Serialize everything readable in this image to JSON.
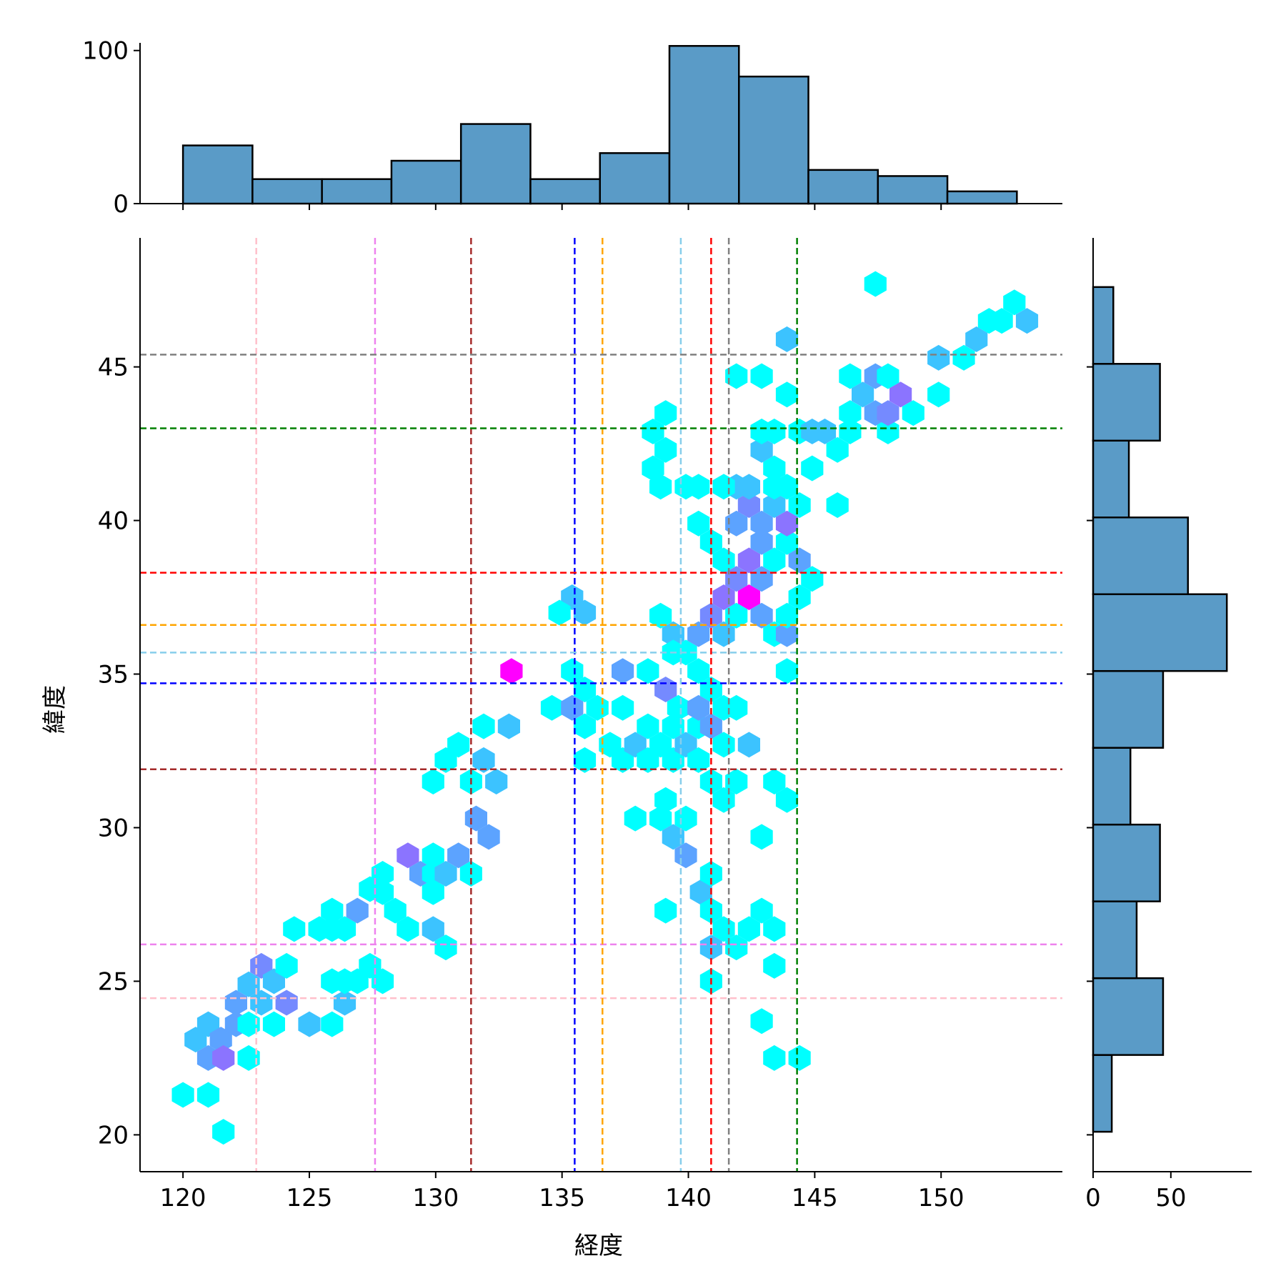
{
  "chart_data": {
    "type": "hexbin-joint",
    "title": "",
    "xlabel": "経度",
    "ylabel": "緯度",
    "xlim": [
      118.3,
      154.8
    ],
    "ylim": [
      18.8,
      49.2
    ],
    "xticks": [
      120,
      125,
      130,
      135,
      140,
      145,
      150
    ],
    "yticks": [
      20,
      25,
      30,
      35,
      40,
      45
    ],
    "grid": false,
    "colors": {
      "hist_fill": "#5a9bc7",
      "hist_edge": "#000000",
      "hex_low": "#00ffff",
      "hex_high": "#ff00ff"
    },
    "reference_lines": [
      {
        "color": "#ffc0cb",
        "lon": 122.9,
        "lat": 24.45
      },
      {
        "color": "#ee82ee",
        "lon": 127.6,
        "lat": 26.2
      },
      {
        "color": "#a52a2a",
        "lon": 131.4,
        "lat": 31.9
      },
      {
        "color": "#0000ff",
        "lon": 135.5,
        "lat": 34.7
      },
      {
        "color": "#ffa500",
        "lon": 136.6,
        "lat": 36.6
      },
      {
        "color": "#87ceeb",
        "lon": 139.7,
        "lat": 35.7
      },
      {
        "color": "#ff0000",
        "lon": 140.9,
        "lat": 38.3
      },
      {
        "color": "#808080",
        "lon": 141.6,
        "lat": 45.4
      },
      {
        "color": "#008000",
        "lon": 144.3,
        "lat": 43.0
      }
    ],
    "marginal_x": {
      "yticks": [
        0,
        100
      ],
      "bins": [
        {
          "x0": 120.0,
          "x1": 122.75,
          "count": 38
        },
        {
          "x0": 122.75,
          "x1": 125.5,
          "count": 16
        },
        {
          "x0": 125.5,
          "x1": 128.25,
          "count": 16
        },
        {
          "x0": 128.25,
          "x1": 131.0,
          "count": 28
        },
        {
          "x0": 131.0,
          "x1": 133.75,
          "count": 52
        },
        {
          "x0": 133.75,
          "x1": 136.5,
          "count": 16
        },
        {
          "x0": 136.5,
          "x1": 139.25,
          "count": 33
        },
        {
          "x0": 139.25,
          "x1": 142.0,
          "count": 103
        },
        {
          "x0": 142.0,
          "x1": 144.75,
          "count": 83
        },
        {
          "x0": 144.75,
          "x1": 147.5,
          "count": 22
        },
        {
          "x0": 147.5,
          "x1": 150.25,
          "count": 18
        },
        {
          "x0": 150.25,
          "x1": 153.0,
          "count": 8
        }
      ]
    },
    "marginal_y": {
      "xticks": [
        0,
        50
      ],
      "xlim": [
        0,
        102
      ],
      "bins": [
        {
          "y0": 20.1,
          "y1": 22.6,
          "count": 12
        },
        {
          "y0": 22.6,
          "y1": 25.1,
          "count": 45
        },
        {
          "y0": 25.1,
          "y1": 27.6,
          "count": 28
        },
        {
          "y0": 27.6,
          "y1": 30.1,
          "count": 43
        },
        {
          "y0": 30.1,
          "y1": 32.6,
          "count": 24
        },
        {
          "y0": 32.6,
          "y1": 35.1,
          "count": 45
        },
        {
          "y0": 35.1,
          "y1": 37.6,
          "count": 86
        },
        {
          "y0": 37.6,
          "y1": 40.1,
          "count": 61
        },
        {
          "y0": 40.1,
          "y1": 42.6,
          "count": 23
        },
        {
          "y0": 42.6,
          "y1": 45.1,
          "count": 43
        },
        {
          "y0": 45.1,
          "y1": 47.6,
          "count": 13
        }
      ]
    },
    "hexbins": [
      [
        120.0,
        21.3,
        1
      ],
      [
        121.0,
        21.3,
        1
      ],
      [
        121.6,
        20.1,
        1
      ],
      [
        120.5,
        23.1,
        2
      ],
      [
        121.0,
        23.6,
        2
      ],
      [
        121.0,
        22.5,
        3
      ],
      [
        121.5,
        23.1,
        3
      ],
      [
        121.6,
        22.5,
        5
      ],
      [
        122.1,
        23.6,
        3
      ],
      [
        122.6,
        22.5,
        1
      ],
      [
        122.1,
        24.3,
        3
      ],
      [
        122.6,
        24.9,
        2
      ],
      [
        122.6,
        23.6,
        1
      ],
      [
        123.1,
        25.5,
        4
      ],
      [
        123.1,
        24.3,
        2
      ],
      [
        123.6,
        25.0,
        2
      ],
      [
        123.6,
        23.6,
        1
      ],
      [
        124.1,
        24.3,
        4
      ],
      [
        124.1,
        25.5,
        1
      ],
      [
        125.0,
        23.6,
        2
      ],
      [
        125.9,
        23.6,
        1
      ],
      [
        126.4,
        24.3,
        2
      ],
      [
        125.4,
        26.7,
        1
      ],
      [
        124.4,
        26.7,
        1
      ],
      [
        125.9,
        26.7,
        1
      ],
      [
        126.4,
        26.7,
        1
      ],
      [
        125.9,
        27.3,
        1
      ],
      [
        125.9,
        25.0,
        1
      ],
      [
        126.4,
        25.0,
        1
      ],
      [
        126.9,
        25.0,
        1
      ],
      [
        127.4,
        25.5,
        1
      ],
      [
        127.9,
        25.0,
        1
      ],
      [
        126.9,
        27.3,
        3
      ],
      [
        127.4,
        28.0,
        1
      ],
      [
        127.9,
        28.5,
        1
      ],
      [
        127.9,
        27.9,
        1
      ],
      [
        128.4,
        27.3,
        1
      ],
      [
        128.9,
        26.7,
        1
      ],
      [
        128.9,
        29.1,
        5
      ],
      [
        129.4,
        28.5,
        3
      ],
      [
        129.9,
        29.1,
        1
      ],
      [
        129.9,
        28.5,
        1
      ],
      [
        129.9,
        27.9,
        1
      ],
      [
        130.4,
        28.5,
        2
      ],
      [
        130.9,
        29.1,
        3
      ],
      [
        131.4,
        28.5,
        1
      ],
      [
        129.9,
        26.7,
        2
      ],
      [
        130.4,
        26.1,
        1
      ],
      [
        129.9,
        31.5,
        1
      ],
      [
        130.4,
        32.2,
        1
      ],
      [
        130.9,
        32.7,
        1
      ],
      [
        131.4,
        31.5,
        1
      ],
      [
        131.9,
        32.2,
        2
      ],
      [
        132.4,
        31.5,
        2
      ],
      [
        131.9,
        33.3,
        1
      ],
      [
        132.9,
        33.3,
        2
      ],
      [
        131.6,
        30.3,
        3
      ],
      [
        132.1,
        29.7,
        3
      ],
      [
        133.0,
        35.1,
        12
      ],
      [
        134.6,
        33.9,
        1
      ],
      [
        135.4,
        33.9,
        3
      ],
      [
        135.9,
        33.3,
        1
      ],
      [
        135.4,
        35.1,
        1
      ],
      [
        135.9,
        34.5,
        1
      ],
      [
        136.4,
        33.9,
        1
      ],
      [
        135.9,
        32.2,
        1
      ],
      [
        135.4,
        37.5,
        2
      ],
      [
        134.9,
        37.0,
        1
      ],
      [
        135.9,
        37.0,
        2
      ],
      [
        137.4,
        35.1,
        3
      ],
      [
        138.4,
        35.1,
        1
      ],
      [
        137.4,
        33.9,
        1
      ],
      [
        136.9,
        32.7,
        1
      ],
      [
        137.4,
        32.2,
        1
      ],
      [
        137.9,
        32.7,
        2
      ],
      [
        138.4,
        32.2,
        1
      ],
      [
        138.4,
        33.3,
        1
      ],
      [
        138.9,
        32.7,
        1
      ],
      [
        139.4,
        33.3,
        1
      ],
      [
        139.4,
        32.2,
        1
      ],
      [
        139.9,
        32.7,
        2
      ],
      [
        140.4,
        33.3,
        1
      ],
      [
        139.1,
        34.5,
        4
      ],
      [
        139.6,
        33.9,
        1
      ],
      [
        138.9,
        36.9,
        1
      ],
      [
        139.4,
        36.3,
        2
      ],
      [
        139.9,
        35.7,
        1
      ],
      [
        140.4,
        36.3,
        3
      ],
      [
        140.9,
        36.9,
        4
      ],
      [
        141.4,
        37.5,
        5
      ],
      [
        139.4,
        35.7,
        1
      ],
      [
        140.4,
        35.1,
        1
      ],
      [
        140.9,
        34.5,
        1
      ],
      [
        140.4,
        33.9,
        3
      ],
      [
        140.9,
        33.3,
        3
      ],
      [
        141.4,
        33.9,
        1
      ],
      [
        141.4,
        32.7,
        1
      ],
      [
        141.9,
        33.9,
        1
      ],
      [
        142.4,
        32.7,
        2
      ],
      [
        141.9,
        31.5,
        1
      ],
      [
        140.4,
        32.2,
        1
      ],
      [
        140.9,
        31.5,
        1
      ],
      [
        141.4,
        30.9,
        1
      ],
      [
        137.9,
        30.3,
        1
      ],
      [
        138.9,
        30.3,
        1
      ],
      [
        139.1,
        30.9,
        1
      ],
      [
        139.4,
        29.7,
        2
      ],
      [
        139.9,
        29.1,
        3
      ],
      [
        139.9,
        30.3,
        1
      ],
      [
        139.1,
        27.3,
        1
      ],
      [
        140.5,
        27.9,
        2
      ],
      [
        140.9,
        28.5,
        1
      ],
      [
        140.9,
        27.3,
        1
      ],
      [
        141.4,
        26.7,
        1
      ],
      [
        140.9,
        26.1,
        2
      ],
      [
        141.9,
        26.1,
        1
      ],
      [
        142.4,
        26.7,
        1
      ],
      [
        142.9,
        27.3,
        1
      ],
      [
        143.4,
        26.7,
        1
      ],
      [
        140.9,
        25.0,
        1
      ],
      [
        143.4,
        25.5,
        1
      ],
      [
        142.9,
        23.7,
        1
      ],
      [
        143.4,
        22.5,
        1
      ],
      [
        144.4,
        22.5,
        1
      ],
      [
        142.9,
        29.7,
        1
      ],
      [
        143.4,
        31.5,
        1
      ],
      [
        143.9,
        30.9,
        1
      ],
      [
        142.4,
        37.5,
        12
      ],
      [
        141.9,
        38.1,
        4
      ],
      [
        142.4,
        38.7,
        5
      ],
      [
        142.9,
        39.3,
        3
      ],
      [
        143.4,
        38.7,
        1
      ],
      [
        142.9,
        38.1,
        3
      ],
      [
        143.9,
        39.3,
        1
      ],
      [
        144.4,
        38.7,
        3
      ],
      [
        141.9,
        39.9,
        3
      ],
      [
        142.4,
        40.5,
        4
      ],
      [
        142.9,
        39.9,
        3
      ],
      [
        143.4,
        40.5,
        2
      ],
      [
        143.9,
        39.9,
        5
      ],
      [
        144.4,
        40.5,
        1
      ],
      [
        141.9,
        41.1,
        2
      ],
      [
        142.4,
        41.1,
        2
      ],
      [
        143.4,
        41.1,
        1
      ],
      [
        143.9,
        41.1,
        1
      ],
      [
        141.4,
        41.1,
        1
      ],
      [
        140.4,
        41.1,
        1
      ],
      [
        139.9,
        41.1,
        1
      ],
      [
        143.4,
        41.7,
        1
      ],
      [
        142.9,
        42.3,
        2
      ],
      [
        142.9,
        42.9,
        1
      ],
      [
        143.4,
        42.9,
        1
      ],
      [
        144.9,
        41.7,
        1
      ],
      [
        145.9,
        40.5,
        1
      ],
      [
        140.4,
        39.9,
        1
      ],
      [
        140.9,
        39.3,
        1
      ],
      [
        141.4,
        38.7,
        1
      ],
      [
        141.4,
        36.3,
        2
      ],
      [
        141.9,
        36.9,
        1
      ],
      [
        142.9,
        36.9,
        3
      ],
      [
        143.4,
        36.3,
        1
      ],
      [
        143.9,
        36.3,
        3
      ],
      [
        143.9,
        36.9,
        1
      ],
      [
        144.4,
        37.5,
        1
      ],
      [
        144.9,
        38.1,
        1
      ],
      [
        143.9,
        35.1,
        1
      ],
      [
        139.1,
        43.5,
        1
      ],
      [
        138.6,
        42.9,
        1
      ],
      [
        139.1,
        42.3,
        1
      ],
      [
        138.6,
        41.7,
        1
      ],
      [
        138.9,
        41.1,
        1
      ],
      [
        141.9,
        44.7,
        1
      ],
      [
        142.9,
        44.7,
        1
      ],
      [
        143.9,
        44.1,
        1
      ],
      [
        143.9,
        45.9,
        2
      ],
      [
        144.4,
        42.9,
        1
      ],
      [
        144.9,
        42.9,
        2
      ],
      [
        145.4,
        42.9,
        2
      ],
      [
        145.9,
        42.3,
        1
      ],
      [
        146.4,
        42.9,
        1
      ],
      [
        146.4,
        43.5,
        1
      ],
      [
        146.9,
        44.1,
        2
      ],
      [
        146.4,
        44.7,
        1
      ],
      [
        147.4,
        44.7,
        3
      ],
      [
        147.4,
        43.5,
        3
      ],
      [
        147.9,
        42.9,
        1
      ],
      [
        147.9,
        43.5,
        4
      ],
      [
        148.4,
        44.1,
        5
      ],
      [
        147.9,
        44.7,
        1
      ],
      [
        148.9,
        43.5,
        1
      ],
      [
        147.4,
        47.7,
        1
      ],
      [
        149.9,
        45.3,
        2
      ],
      [
        149.9,
        44.1,
        1
      ],
      [
        150.9,
        45.3,
        1
      ],
      [
        151.4,
        45.9,
        2
      ],
      [
        151.9,
        46.5,
        1
      ],
      [
        152.4,
        46.5,
        1
      ],
      [
        152.9,
        47.1,
        1
      ],
      [
        153.4,
        46.5,
        2
      ]
    ]
  }
}
